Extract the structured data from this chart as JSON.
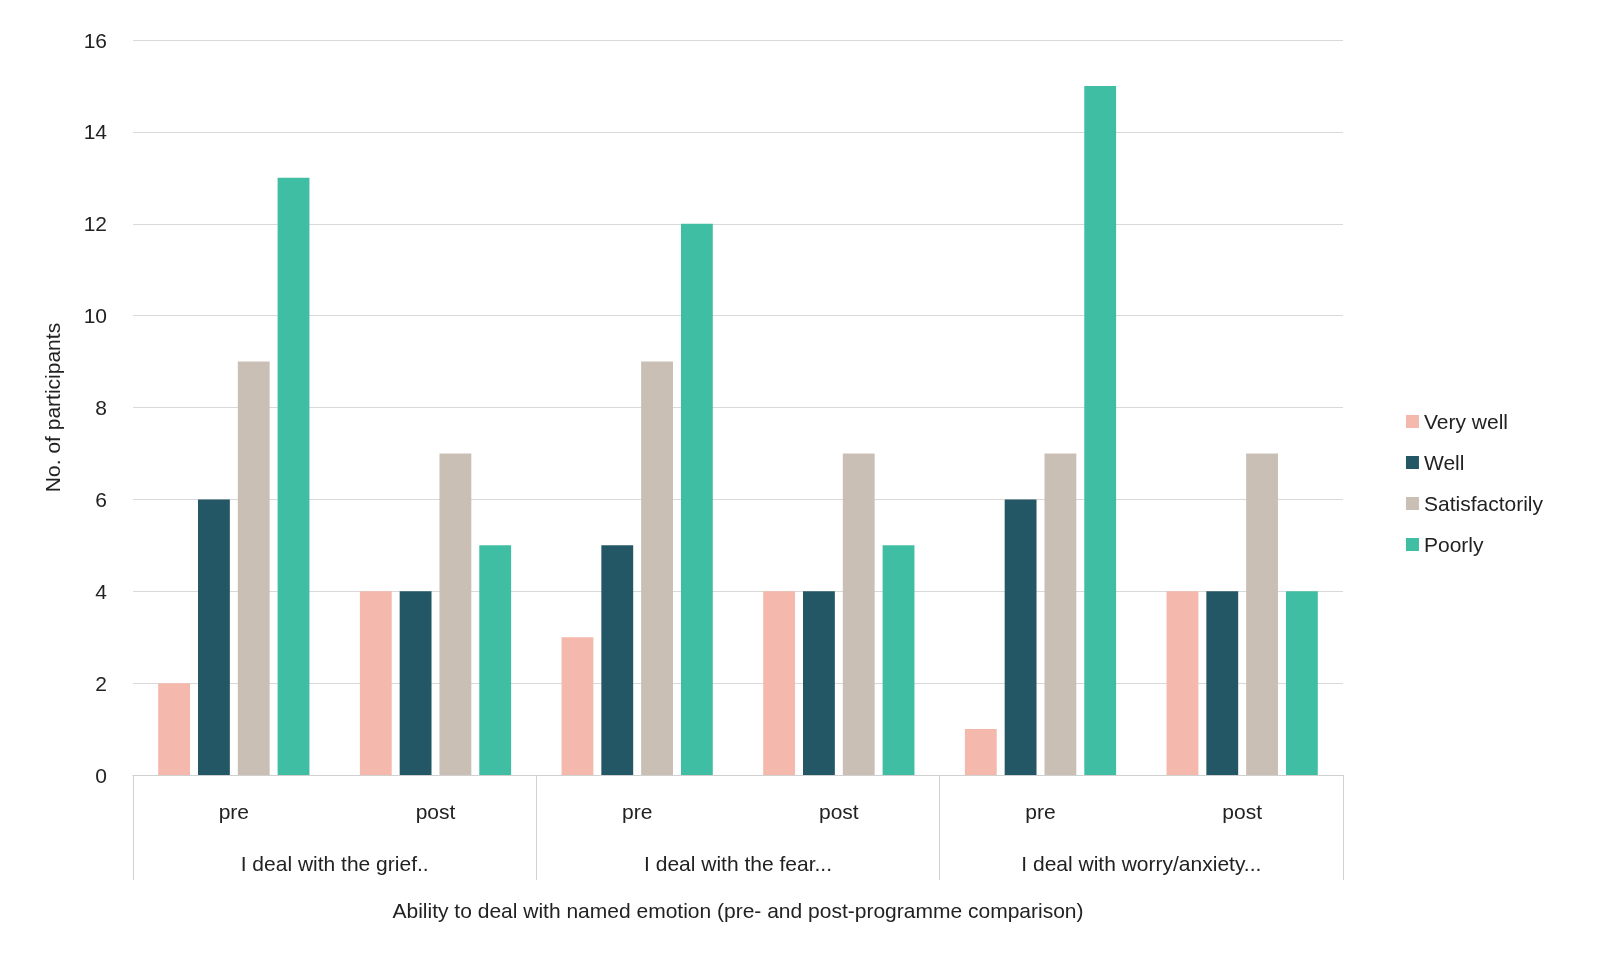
{
  "chart_data": {
    "type": "bar",
    "xlabel": "Ability to deal with named emotion (pre- and post-programme comparison)",
    "ylabel": "No. of participants",
    "categories": [
      "pre",
      "post",
      "pre",
      "post",
      "pre",
      "post"
    ],
    "annotations": [
      "I deal with the grief..",
      "I deal with the fear...",
      "I deal with worry/anxiety..."
    ],
    "series": [
      {
        "name": "Very well",
        "color": "#f4b8ac",
        "values": [
          2,
          4,
          3,
          4,
          1,
          4
        ]
      },
      {
        "name": "Well",
        "color": "#245766",
        "values": [
          6,
          4,
          5,
          4,
          6,
          4
        ]
      },
      {
        "name": "Satisfactorily",
        "color": "#c9bfb5",
        "values": [
          9,
          7,
          9,
          7,
          7,
          7
        ]
      },
      {
        "name": "Poorly",
        "color": "#40bea3",
        "values": [
          13,
          5,
          12,
          5,
          15,
          4
        ]
      }
    ],
    "ylim": [
      0,
      16
    ],
    "yticks": [
      0,
      2,
      4,
      6,
      8,
      10,
      12,
      14,
      16
    ],
    "grid": "y",
    "legend": "right"
  }
}
